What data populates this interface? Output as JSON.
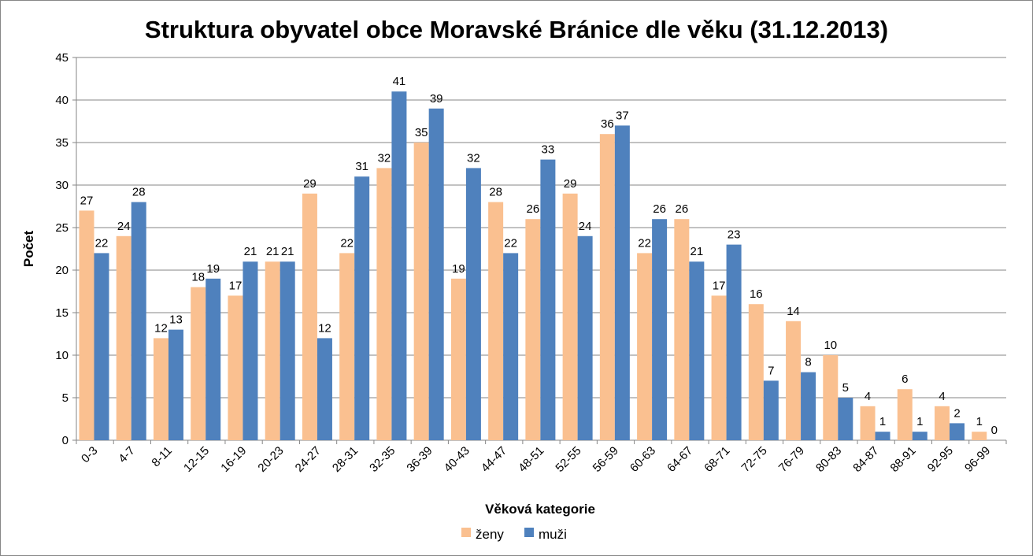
{
  "chart_data": {
    "type": "bar",
    "title": "Struktura obyvatel obce Moravské Bránice dle věku (31.12.2013)",
    "xlabel": "Věková kategorie",
    "ylabel": "Počet",
    "ylim": [
      0,
      45
    ],
    "yticks": [
      0,
      5,
      10,
      15,
      20,
      25,
      30,
      35,
      40,
      45
    ],
    "grid": true,
    "legend_position": "bottom",
    "categories": [
      "0-3",
      "4-7",
      "8-11",
      "12-15",
      "16-19",
      "20-23",
      "24-27",
      "28-31",
      "32-35",
      "36-39",
      "40-43",
      "44-47",
      "48-51",
      "52-55",
      "56-59",
      "60-63",
      "64-67",
      "68-71",
      "72-75",
      "76-79",
      "80-83",
      "84-87",
      "88-91",
      "92-95",
      "96-99"
    ],
    "series": [
      {
        "name": "ženy",
        "color": "#FAC090",
        "values": [
          27,
          24,
          12,
          18,
          17,
          21,
          29,
          22,
          32,
          35,
          19,
          28,
          26,
          29,
          36,
          22,
          26,
          17,
          16,
          14,
          10,
          4,
          6,
          4,
          1
        ]
      },
      {
        "name": "muži",
        "color": "#4F81BD",
        "values": [
          22,
          28,
          13,
          19,
          21,
          21,
          12,
          31,
          41,
          39,
          32,
          22,
          33,
          24,
          37,
          26,
          21,
          23,
          7,
          8,
          5,
          1,
          1,
          2,
          0
        ]
      }
    ]
  }
}
